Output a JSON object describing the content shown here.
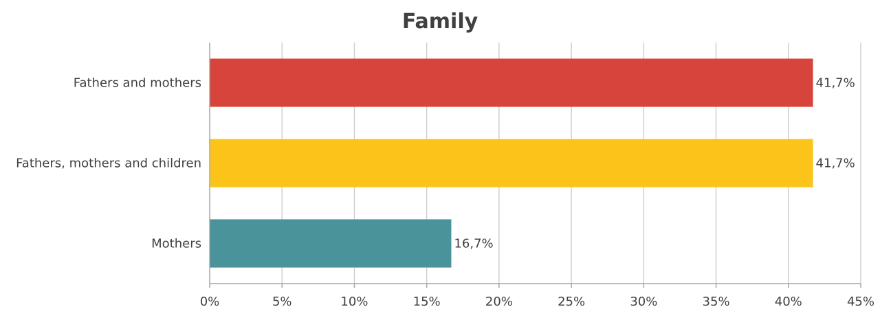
{
  "chart_data": {
    "type": "bar",
    "orientation": "horizontal",
    "title": "Family",
    "categories": [
      "Fathers and mothers",
      "Fathers, mothers and children",
      "Mothers"
    ],
    "values": [
      41.7,
      41.7,
      16.7
    ],
    "data_labels": [
      "41,7%",
      "41,7%",
      "16,7%"
    ],
    "colors": [
      "#d6443c",
      "#fcc419",
      "#4a939b"
    ],
    "xlim": [
      0,
      45
    ],
    "x_ticks": [
      0,
      5,
      10,
      15,
      20,
      25,
      30,
      35,
      40,
      45
    ],
    "x_tick_labels": [
      "0%",
      "5%",
      "10%",
      "15%",
      "20%",
      "25%",
      "30%",
      "35%",
      "40%",
      "45%"
    ],
    "grid": true,
    "legend": "none",
    "xlabel": "",
    "ylabel": ""
  }
}
